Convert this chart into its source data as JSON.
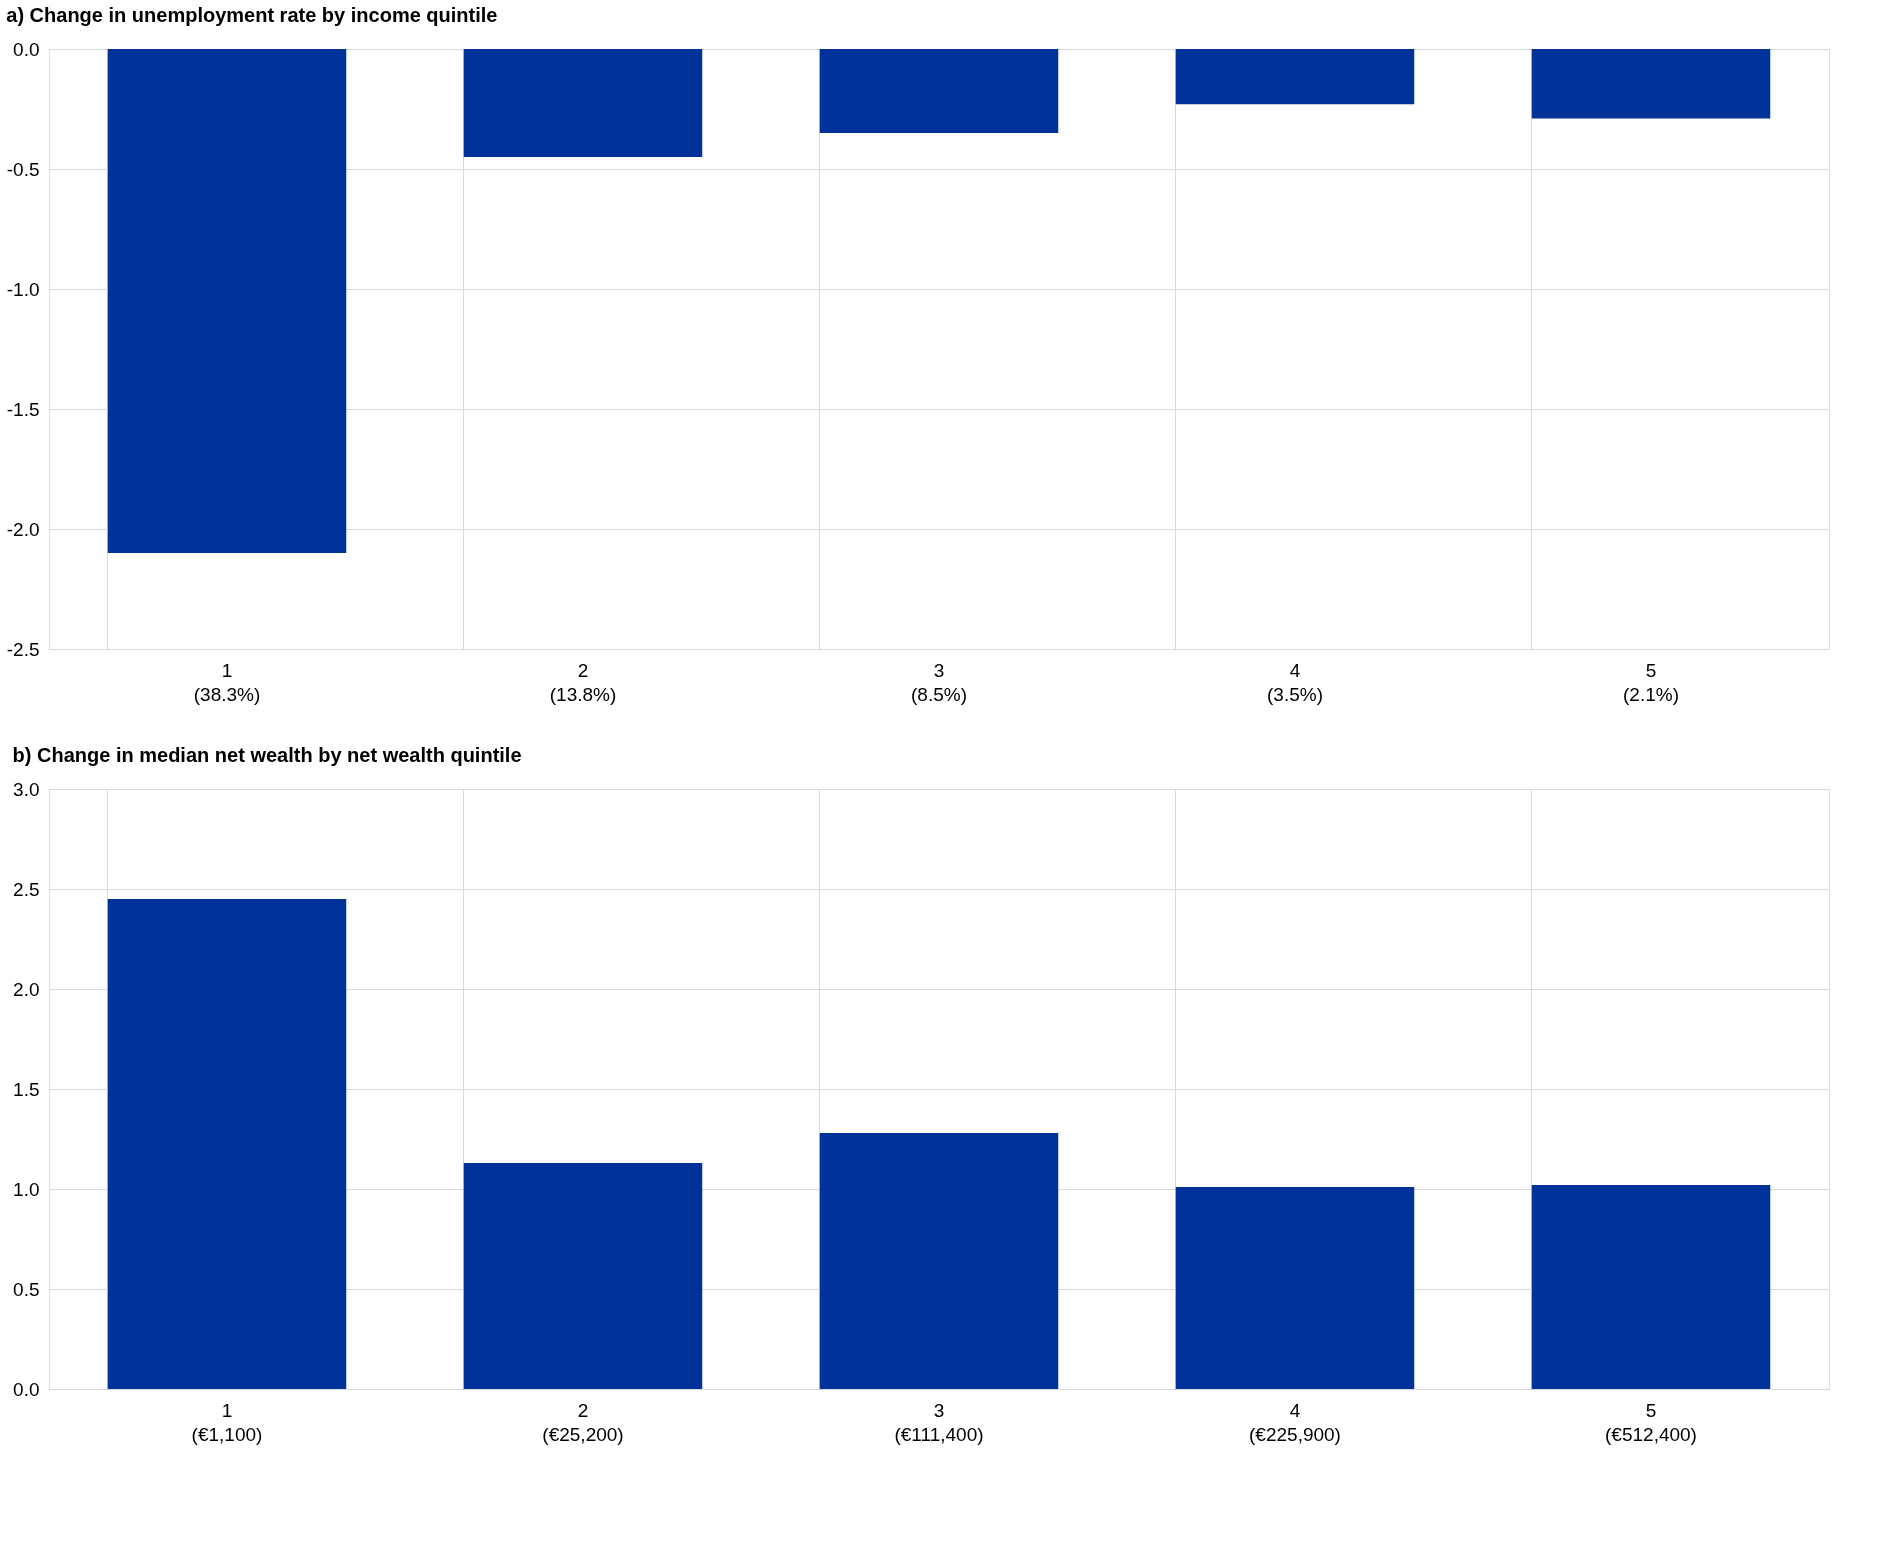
{
  "chart_data": [
    {
      "type": "bar",
      "title": "a) Change in unemployment rate by income quintile",
      "categories": [
        "1\n(38.3%)",
        "2\n(13.8%)",
        "3\n(8.5%)",
        "4\n(3.5%)",
        "5\n(2.1%)"
      ],
      "values": [
        -2.1,
        -0.45,
        -0.35,
        -0.23,
        -0.29
      ],
      "color": "#003299",
      "ylim": [
        -2.5,
        0
      ],
      "yticks": [
        {
          "value": -2.5,
          "label": "-2.5"
        },
        {
          "value": -2,
          "label": "-2.0"
        },
        {
          "value": -1.5,
          "label": "-1.5"
        },
        {
          "value": -1,
          "label": "-1.0"
        },
        {
          "value": -0.5,
          "label": "-0.5"
        },
        {
          "value": 0,
          "label": "0.0"
        }
      ],
      "grid": true
    },
    {
      "type": "bar",
      "title": "b) Change in median net wealth by net wealth quintile",
      "categories": [
        "1\n(€1,100)",
        "2\n(€25,200)",
        "3\n(€111,400)",
        "4\n(€225,900)",
        "5\n(€512,400)"
      ],
      "values": [
        2.45,
        1.13,
        1.28,
        1.01,
        1.02
      ],
      "color": "#003299",
      "ylim": [
        0,
        3
      ],
      "yticks": [
        {
          "value": 0,
          "label": "0.0"
        },
        {
          "value": 0.5,
          "label": "0.5"
        },
        {
          "value": 1,
          "label": "1.0"
        },
        {
          "value": 1.5,
          "label": "1.5"
        },
        {
          "value": 2,
          "label": "2.0"
        },
        {
          "value": 2.5,
          "label": "2.5"
        },
        {
          "value": 3,
          "label": "3.0"
        }
      ],
      "grid": true
    }
  ]
}
